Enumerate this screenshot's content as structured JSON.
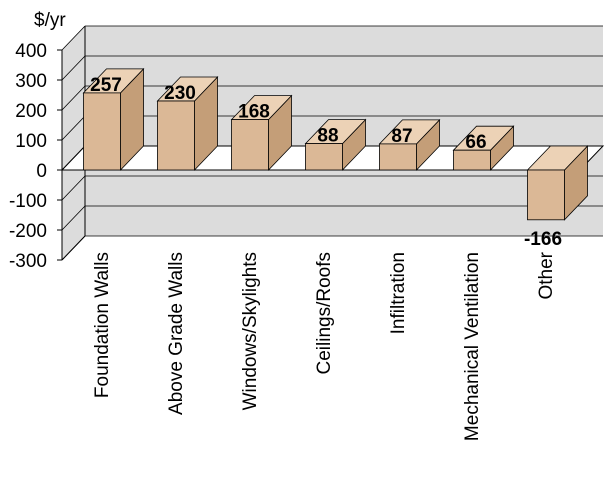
{
  "chart_data": {
    "type": "bar",
    "style": "3d",
    "unit_label": "$/yr",
    "categories": [
      "Foundation Walls",
      "Above Grade Walls",
      "Windows/Skylights",
      "Ceilings/Roofs",
      "Infiltration",
      "Mechanical Ventilation",
      "Other"
    ],
    "values": [
      257,
      230,
      168,
      88,
      87,
      66,
      -166
    ],
    "value_labels": [
      "257",
      "230",
      "168",
      "88",
      "87",
      "66",
      "-166"
    ],
    "yticks": [
      "400",
      "300",
      "200",
      "100",
      "0",
      "-100",
      "-200",
      "-300"
    ],
    "ylim": [
      -300,
      400
    ],
    "grid": true,
    "legend": "none",
    "colors": {
      "bar_front": "#dbb896",
      "bar_top": "#ecd2b6",
      "bar_side": "#c49e78",
      "wall": "#dcdcdc",
      "floor": "#ffffff",
      "grid": "#000000"
    }
  }
}
